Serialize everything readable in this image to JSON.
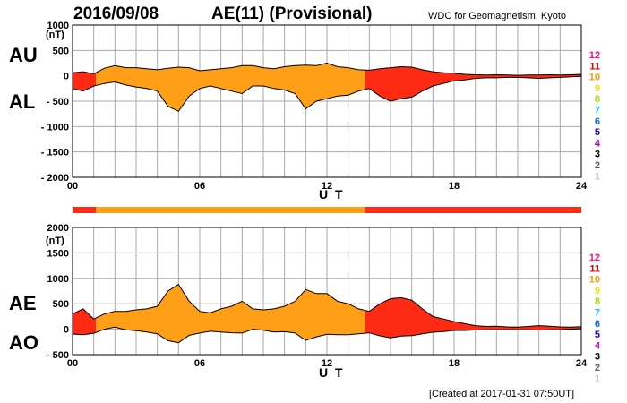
{
  "header": {
    "date": "2016/09/08",
    "title": "AE(11) (Provisional)",
    "source": "WDC for Geomagnetism, Kyoto"
  },
  "footer": {
    "created": "[Created at 2017-01-31 07:50UT]"
  },
  "colors": {
    "orange": "#ff9f17",
    "red": "#ff2a14",
    "grid": "#aaaaaa",
    "levels": {
      "12": "#ff1080",
      "11": "#e00000",
      "10": "#ff9900",
      "9": "#e8e800",
      "8": "#a8e000",
      "7": "#10d0f0",
      "6": "#1060ff",
      "5": "#2000c0",
      "4": "#c000c0",
      "3": "#000000",
      "2": "#606060",
      "1": "#c8c8c8"
    }
  },
  "chart_data": [
    {
      "type": "area",
      "name_labels": [
        "AU",
        "AL"
      ],
      "units": "(nT)",
      "xlabel": "U T",
      "xlim": [
        0,
        24
      ],
      "xticks": [
        "00",
        "06",
        "12",
        "18",
        "24"
      ],
      "ylim": [
        -2000,
        1000
      ],
      "yticks": [
        "1000",
        "500",
        "0",
        "- 500",
        "- 1000",
        "- 1500",
        "- 2000"
      ],
      "legend_levels": [
        "12",
        "11",
        "10",
        "9",
        "8",
        "7",
        "6",
        "5",
        "4",
        "3",
        "2",
        "1"
      ],
      "series": [
        {
          "name": "AU",
          "x": [
            0,
            0.5,
            1,
            1.5,
            2,
            2.5,
            3,
            3.5,
            4,
            4.5,
            5,
            5.5,
            6,
            6.5,
            7,
            7.5,
            8,
            8.5,
            9,
            9.5,
            10,
            10.5,
            11,
            11.5,
            12,
            12.5,
            13,
            13.5,
            14,
            14.5,
            15,
            15.5,
            16,
            16.5,
            17,
            17.5,
            18,
            18.5,
            19,
            19.5,
            20,
            20.5,
            21,
            21.5,
            22,
            22.5,
            23,
            23.5,
            24
          ],
          "values": [
            60,
            80,
            40,
            150,
            200,
            160,
            160,
            140,
            120,
            150,
            170,
            160,
            100,
            120,
            140,
            160,
            200,
            200,
            160,
            140,
            180,
            200,
            210,
            200,
            250,
            180,
            160,
            120,
            110,
            140,
            160,
            180,
            170,
            120,
            80,
            60,
            50,
            30,
            20,
            15,
            20,
            15,
            10,
            15,
            15,
            20,
            15,
            20,
            30
          ]
        },
        {
          "name": "AL",
          "x": [
            0,
            0.5,
            1,
            1.5,
            2,
            2.5,
            3,
            3.5,
            4,
            4.5,
            5,
            5.5,
            6,
            6.5,
            7,
            7.5,
            8,
            8.5,
            9,
            9.5,
            10,
            10.5,
            11,
            11.5,
            12,
            12.5,
            13,
            13.5,
            14,
            14.5,
            15,
            15.5,
            16,
            16.5,
            17,
            17.5,
            18,
            18.5,
            19,
            19.5,
            20,
            20.5,
            21,
            21.5,
            22,
            22.5,
            23,
            23.5,
            24
          ],
          "values": [
            -250,
            -300,
            -200,
            -150,
            -120,
            -180,
            -220,
            -250,
            -300,
            -600,
            -700,
            -400,
            -250,
            -200,
            -250,
            -300,
            -350,
            -200,
            -200,
            -250,
            -280,
            -350,
            -650,
            -500,
            -450,
            -400,
            -380,
            -300,
            -250,
            -400,
            -500,
            -450,
            -420,
            -300,
            -200,
            -150,
            -100,
            -80,
            -50,
            -40,
            -40,
            -30,
            -30,
            -40,
            -50,
            -40,
            -30,
            -20,
            -10
          ]
        }
      ],
      "activity_bands": [
        {
          "from": 0,
          "to": 1.1,
          "color": "red"
        },
        {
          "from": 1.1,
          "to": 13.8,
          "color": "orange"
        },
        {
          "from": 13.8,
          "to": 24,
          "color": "red"
        }
      ]
    },
    {
      "type": "area",
      "name_labels": [
        "AE",
        "AO"
      ],
      "units": "(nT)",
      "xlabel": "U T",
      "xlim": [
        0,
        24
      ],
      "xticks": [
        "00",
        "06",
        "12",
        "18",
        "24"
      ],
      "ylim": [
        -500,
        2000
      ],
      "yticks": [
        "2000",
        "1500",
        "1000",
        "500",
        "0",
        "- 500"
      ],
      "legend_levels": [
        "12",
        "11",
        "10",
        "9",
        "8",
        "7",
        "6",
        "5",
        "4",
        "3",
        "2",
        "1"
      ],
      "series": [
        {
          "name": "AE",
          "x": [
            0,
            0.5,
            1,
            1.5,
            2,
            2.5,
            3,
            3.5,
            4,
            4.5,
            5,
            5.5,
            6,
            6.5,
            7,
            7.5,
            8,
            8.5,
            9,
            9.5,
            10,
            10.5,
            11,
            11.5,
            12,
            12.5,
            13,
            13.5,
            14,
            14.5,
            15,
            15.5,
            16,
            16.5,
            17,
            17.5,
            18,
            18.5,
            19,
            19.5,
            20,
            20.5,
            21,
            21.5,
            22,
            22.5,
            23,
            23.5,
            24
          ],
          "values": [
            300,
            400,
            200,
            300,
            350,
            350,
            380,
            400,
            450,
            750,
            880,
            550,
            350,
            320,
            400,
            450,
            550,
            400,
            380,
            400,
            450,
            550,
            780,
            700,
            700,
            550,
            500,
            400,
            350,
            500,
            600,
            620,
            570,
            400,
            250,
            200,
            150,
            110,
            70,
            55,
            60,
            45,
            40,
            55,
            70,
            60,
            45,
            40,
            50
          ]
        },
        {
          "name": "AO",
          "x": [
            0,
            0.5,
            1,
            1.5,
            2,
            2.5,
            3,
            3.5,
            4,
            4.5,
            5,
            5.5,
            6,
            6.5,
            7,
            7.5,
            8,
            8.5,
            9,
            9.5,
            10,
            10.5,
            11,
            11.5,
            12,
            12.5,
            13,
            13.5,
            14,
            14.5,
            15,
            15.5,
            16,
            16.5,
            17,
            17.5,
            18,
            18.5,
            19,
            19.5,
            20,
            20.5,
            21,
            21.5,
            22,
            22.5,
            23,
            23.5,
            24
          ],
          "values": [
            -95,
            -110,
            -80,
            0,
            40,
            -10,
            -30,
            -55,
            -90,
            -225,
            -265,
            -120,
            -75,
            -40,
            -55,
            -70,
            -75,
            0,
            -20,
            -55,
            -50,
            -75,
            -220,
            -150,
            -100,
            -110,
            -110,
            -90,
            -70,
            -130,
            -170,
            -135,
            -125,
            -90,
            -60,
            -45,
            -25,
            -25,
            -15,
            -12,
            -10,
            -8,
            -10,
            -12,
            -17,
            -10,
            -8,
            0,
            10
          ]
        }
      ],
      "activity_bands": [
        {
          "from": 0,
          "to": 1.1,
          "color": "red"
        },
        {
          "from": 1.1,
          "to": 13.8,
          "color": "orange"
        },
        {
          "from": 13.8,
          "to": 24,
          "color": "red"
        }
      ]
    }
  ]
}
